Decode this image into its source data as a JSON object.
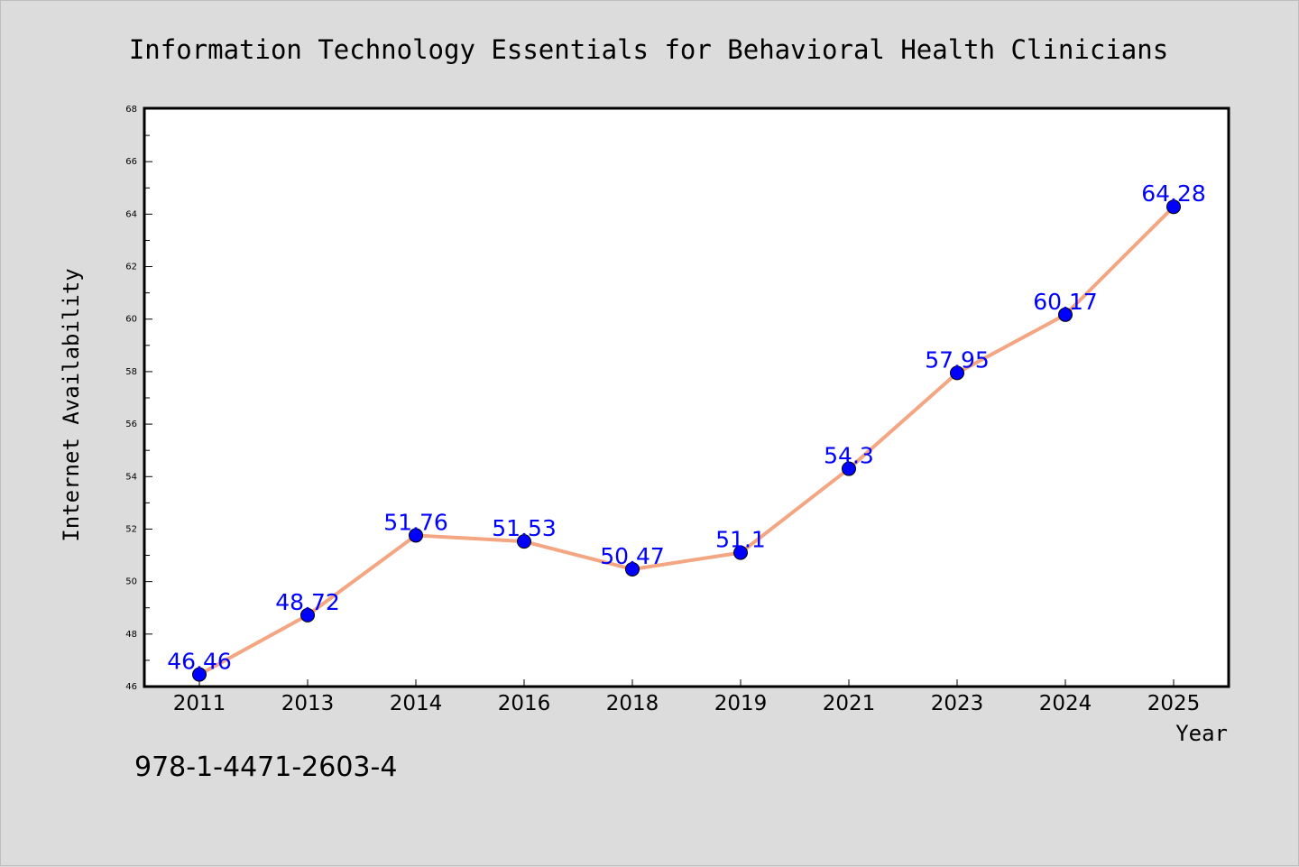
{
  "chart_data": {
    "type": "line",
    "title": "Information Technology Essentials for Behavioral Health Clinicians",
    "xlabel": "Year",
    "ylabel": "Internet Availability",
    "categories": [
      "2011",
      "2013",
      "2014",
      "2016",
      "2018",
      "2019",
      "2021",
      "2023",
      "2024",
      "2025"
    ],
    "series": [
      {
        "values": [
          46.46,
          48.72,
          51.76,
          51.53,
          50.47,
          51.1,
          54.3,
          57.95,
          60.17,
          64.28
        ],
        "labels": [
          "46.46",
          "48.72",
          "51.76",
          "51.53",
          "50.47",
          "51.1",
          "54.3",
          "57.95",
          "60.17",
          "64.28"
        ]
      }
    ],
    "ylim": [
      46,
      68
    ],
    "yticks": [
      "46",
      "48",
      "50",
      "52",
      "54",
      "56",
      "58",
      "60",
      "62",
      "64",
      "66",
      "68"
    ],
    "grid": false,
    "colors": {
      "line": "#f4a582",
      "marker": "#0000ff",
      "data_label": "#0000ff",
      "background": "#dcdcdc",
      "plot_area": "#ffffff"
    }
  },
  "footer": {
    "text": "978-1-4471-2603-4"
  }
}
